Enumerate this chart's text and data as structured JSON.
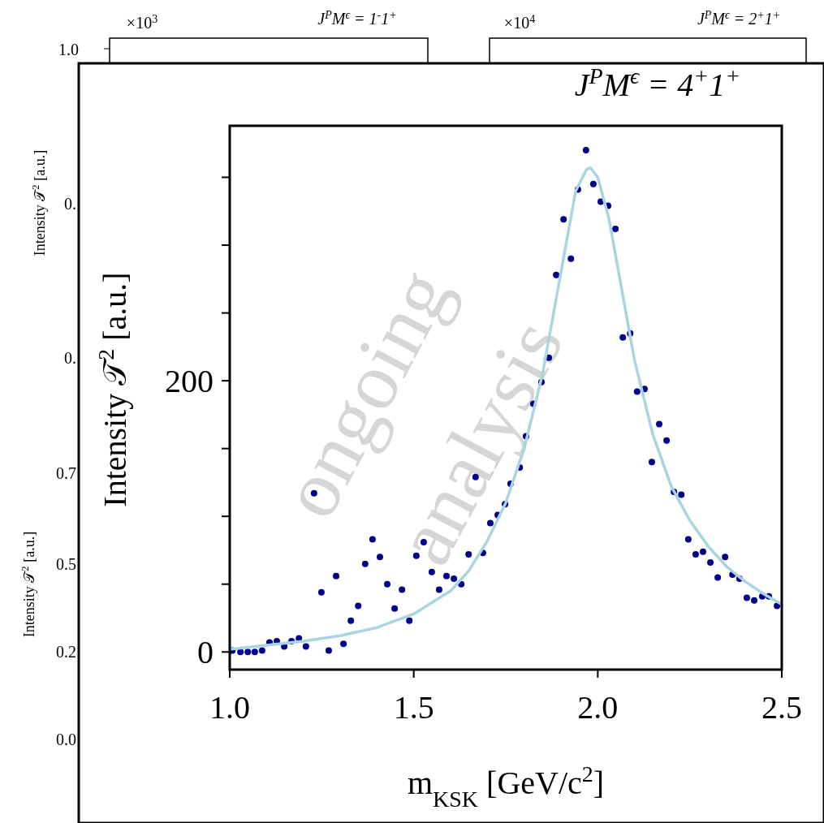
{
  "chart_data": [
    {
      "type": "scatter",
      "title": "J$^{P}$M$^{ϵ}$ = 4$^{+}$1$^{+}$",
      "xlabel": "m$_{K}$$_{S}$$_{K}$ [GeV/c$^{2}$]",
      "ylabel": "Intensity 𝒯$^{2}$ [a.u.]",
      "annotations": [
        "ongoing",
        "analysis"
      ],
      "xlim": [
        1.0,
        2.5
      ],
      "xticks": [
        {
          "value": 1.0,
          "label": "1.0"
        },
        {
          "value": 1.5,
          "label": "1.5"
        },
        {
          "value": 2.0,
          "label": "2.0"
        },
        {
          "value": 2.5,
          "label": "2.5"
        }
      ],
      "ylim": [
        -13,
        388
      ],
      "yticks": [
        0,
        {
          "value": 50,
          "label": null
        },
        {
          "value": 100,
          "label": null
        },
        {
          "value": 150,
          "label": null
        },
        200,
        {
          "value": 250,
          "label": null
        },
        {
          "value": 300,
          "label": null
        },
        {
          "value": 350,
          "label": null
        }
      ],
      "grid": false,
      "series": [
        {
          "type": "scatter",
          "marker": "circle",
          "color": "#00008b",
          "x": [
            1.007,
            1.029,
            1.049,
            1.068,
            1.088,
            1.108,
            1.128,
            1.148,
            1.168,
            1.188,
            1.207,
            1.229,
            1.249,
            1.269,
            1.289,
            1.309,
            1.329,
            1.349,
            1.368,
            1.388,
            1.408,
            1.428,
            1.448,
            1.468,
            1.488,
            1.507,
            1.527,
            1.549,
            1.569,
            1.589,
            1.609,
            1.629,
            1.649,
            1.668,
            1.688,
            1.708,
            1.728,
            1.748,
            1.763,
            1.788,
            1.805,
            1.825,
            1.847,
            1.867,
            1.887,
            1.907,
            1.927,
            1.946,
            1.968,
            1.988,
            2.008,
            2.028,
            2.048,
            2.068,
            2.088,
            2.107,
            2.127,
            2.147,
            2.167,
            2.187,
            2.207,
            2.227,
            2.246,
            2.266,
            2.286,
            2.306,
            2.326,
            2.346,
            2.366,
            2.385,
            2.405,
            2.425,
            2.447,
            2.465,
            2.487
          ],
          "values": [
            1,
            0,
            0,
            0,
            1,
            7,
            8,
            4,
            8,
            10,
            4,
            117,
            44,
            1,
            56,
            6,
            23,
            34,
            65,
            83,
            70,
            50,
            32,
            46,
            23,
            71,
            81,
            59,
            46,
            56,
            54,
            50,
            72,
            129,
            73,
            95,
            101,
            109,
            124,
            136,
            159,
            183,
            199,
            217,
            278,
            319,
            290,
            341,
            370,
            345,
            332,
            329,
            312,
            232,
            235,
            192,
            194,
            140,
            168,
            156,
            118,
            116,
            83,
            72,
            74,
            66,
            55,
            70,
            57,
            54,
            40,
            38,
            41,
            41,
            34
          ]
        },
        {
          "type": "line",
          "color": "#a8d5e2",
          "line_style": "solid",
          "x": [
            1.0,
            1.1,
            1.2,
            1.3,
            1.4,
            1.5,
            1.6,
            1.65,
            1.7,
            1.75,
            1.8,
            1.85,
            1.9,
            1.94,
            1.97,
            1.98,
            2.0,
            2.03,
            2.06,
            2.1,
            2.15,
            2.2,
            2.25,
            2.3,
            2.35,
            2.4,
            2.45,
            2.5
          ],
          "values": [
            2,
            5,
            8,
            12,
            18,
            28,
            45,
            60,
            82,
            110,
            150,
            205,
            280,
            340,
            356,
            357,
            350,
            320,
            275,
            215,
            160,
            122,
            97,
            78,
            63,
            52,
            43,
            35
          ]
        }
      ]
    },
    {
      "type": "other",
      "title": "J$^{P}$M$^{ϵ}$ = 1$^{-}$1$^{+}$",
      "annotations": [
        "×10$^{3}$",
        "1.0"
      ]
    },
    {
      "type": "other",
      "title": "J$^{P}$M$^{ϵ}$ = 2$^{+}$1$^{+}$",
      "annotations": [
        "×10$^{4}$"
      ]
    },
    {
      "type": "other",
      "annotations": [
        "Intensity 𝒯$^{2}$ [a.u.]",
        "0.",
        "0.",
        "0.7",
        "0.5",
        "0.2",
        "0.0",
        "Intensity 𝒯$^{2}$ [a.u.]"
      ]
    }
  ]
}
